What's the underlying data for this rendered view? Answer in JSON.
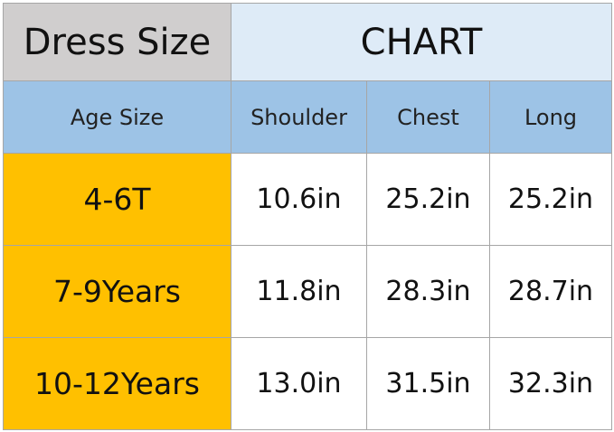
{
  "title": "Dress Size",
  "subtitle": "CHART",
  "colors": {
    "title_bg": "#d0cece",
    "chart_bg": "#deebf7",
    "header_bg": "#9dc3e6",
    "age_bg": "#ffc000"
  },
  "headers": [
    "Age Size",
    "Shoulder",
    "Chest",
    "Long"
  ],
  "rows": [
    {
      "age": "4-6T",
      "shoulder": "10.6in",
      "chest": "25.2in",
      "long": "25.2in"
    },
    {
      "age": "7-9Years",
      "shoulder": "11.8in",
      "chest": "28.3in",
      "long": "28.7in"
    },
    {
      "age": "10-12Years",
      "shoulder": "13.0in",
      "chest": "31.5in",
      "long": "32.3in"
    }
  ]
}
